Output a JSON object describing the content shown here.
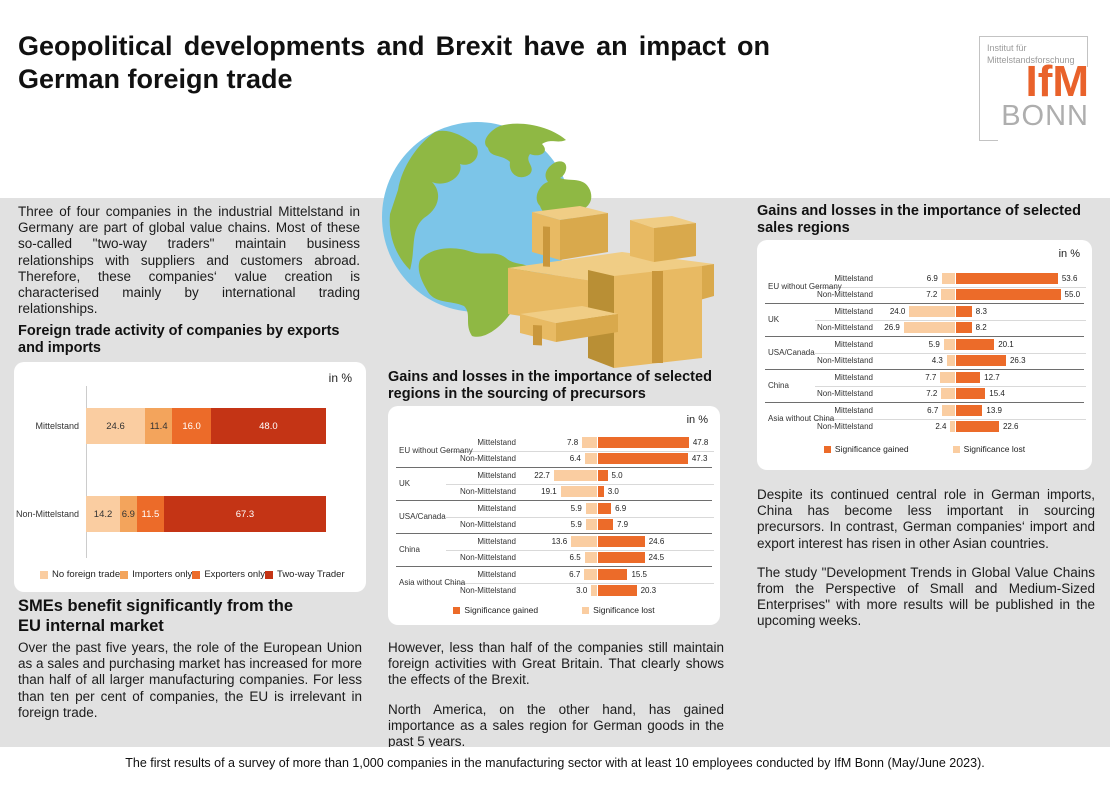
{
  "header": {
    "title_line1": "Geopolitical developments and Brexit have an impact on",
    "title_line2": "German foreign trade"
  },
  "logo": {
    "institute_line1": "Institut für",
    "institute_line2": "Mittelstandsforschung",
    "acronym": "IfM",
    "city": "BONN"
  },
  "sections": {
    "intro": "Three of four companies in the industrial Mittelstand in Germany are part of global value chains. Most of these so-called \"two-way traders\" maintain business relationships with suppliers and customers abroad. Therefore, these companies‘ value creation is characterised mainly by international trading relationships.",
    "left_chart_heading": "Foreign trade activity of companies by exports and imports",
    "sme_heading_line1": "SMEs benefit significantly from the",
    "sme_heading_line2": "EU internal market",
    "sme_text": "Over the past five years, the role of the European Union as a sales and purchasing market has increased for more than half of all larger manufacturing companies. For less than ten per cent of companies, the EU is irrelevant in foreign trade.",
    "middle_chart_heading": "Gains and losses in the importance of selected regions in the sourcing of precursors",
    "middle_text1": "However, less than half of the companies still maintain foreign activities with Great Britain. That clearly shows the effects of the Brexit.",
    "middle_text2": "North America, on the other hand, has gained importance as a sales region for German goods in the past 5 years.",
    "right_chart_heading": "Gains and losses in the importance of selected sales regions",
    "right_text1": "Despite its continued central role in German imports, China has become less important in sourcing precursors. In contrast, German companies‘ import and export interest has risen in other Asian countries.",
    "right_text2": "The study \"Development Trends in Global Value Chains from the Perspective of Small and Medium-Sized Enterprises\" with more results will be published in the upcoming weeks."
  },
  "footer": {
    "source_note": "The first results of a survey of more than 1,000 companies in the manufacturing sector with at least 10 employees conducted by IfM Bonn (May/June 2023)."
  },
  "colors": {
    "background_gray": "#e1e1e1",
    "accent_orange": "#ec6b29",
    "peach": "#facda1",
    "light_orange": "#f3a45c",
    "dark_red": "#c43415",
    "logo_orange": "#e9622b"
  },
  "chart_data": [
    {
      "type": "bar",
      "stacked": true,
      "title": "Foreign trade activity of companies by exports and imports",
      "unit_label": "in %",
      "categories": [
        "Mittelstand",
        "Non-Mittelstand"
      ],
      "series": [
        {
          "name": "No foreign trade",
          "color": "#facda1",
          "values": [
            24.6,
            14.2
          ]
        },
        {
          "name": "Importers only",
          "color": "#f3a45c",
          "values": [
            11.4,
            6.9
          ]
        },
        {
          "name": "Exporters only",
          "color": "#ec6b29",
          "values": [
            16.0,
            11.5
          ]
        },
        {
          "name": "Two-way Trader",
          "color": "#c43415",
          "values": [
            48.0,
            67.3
          ]
        }
      ],
      "xlim": [
        0,
        100
      ],
      "legend_position": "bottom"
    },
    {
      "type": "bar",
      "diverging": true,
      "title": "Gains and losses in the importance of selected regions in the sourcing of precursors",
      "unit_label": "in %",
      "groups": [
        "EU without Germany",
        "UK",
        "USA/Canada",
        "China",
        "Asia without China"
      ],
      "rows_per_group": [
        "Mittelstand",
        "Non-Mittelstand"
      ],
      "series": [
        {
          "name": "Significance gained",
          "color": "#ec6b29",
          "values": [
            [
              47.8,
              47.3
            ],
            [
              5.0,
              3.0
            ],
            [
              6.9,
              7.9
            ],
            [
              24.6,
              24.5
            ],
            [
              15.5,
              20.3
            ]
          ]
        },
        {
          "name": "Significance lost",
          "color": "#facda1",
          "values": [
            [
              7.8,
              6.4
            ],
            [
              22.7,
              19.1
            ],
            [
              5.9,
              5.9
            ],
            [
              13.6,
              6.5
            ],
            [
              6.7,
              3.0
            ]
          ]
        }
      ],
      "legend_position": "bottom"
    },
    {
      "type": "bar",
      "diverging": true,
      "title": "Gains and losses in the importance of selected sales regions",
      "unit_label": "in %",
      "groups": [
        "EU without Germany",
        "UK",
        "USA/Canada",
        "China",
        "Asia without China"
      ],
      "rows_per_group": [
        "Mittelstand",
        "Non-Mittelstand"
      ],
      "series": [
        {
          "name": "Significance gained",
          "color": "#ec6b29",
          "values": [
            [
              53.6,
              55.0
            ],
            [
              8.3,
              8.2
            ],
            [
              20.1,
              26.3
            ],
            [
              12.7,
              15.4
            ],
            [
              13.9,
              22.6
            ]
          ]
        },
        {
          "name": "Significance lost",
          "color": "#facda1",
          "values": [
            [
              6.9,
              7.2
            ],
            [
              24.0,
              26.9
            ],
            [
              5.9,
              4.3
            ],
            [
              7.7,
              7.2
            ],
            [
              6.7,
              2.4
            ]
          ]
        }
      ],
      "legend_position": "bottom"
    }
  ]
}
